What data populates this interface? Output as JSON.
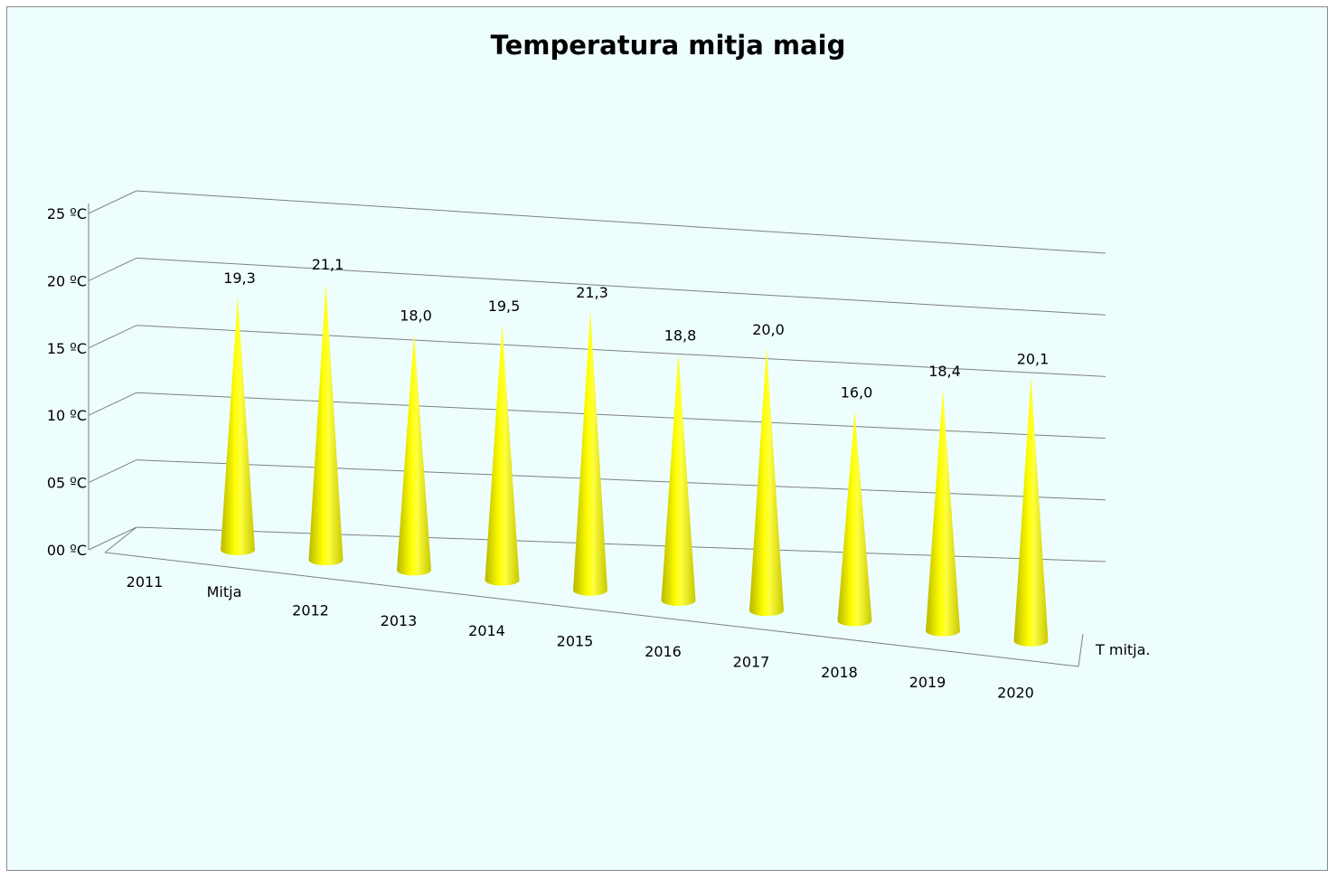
{
  "chart_data": {
    "type": "bar",
    "subtype": "3d-cone",
    "title": "Temperatura mitja maig",
    "xlabel": "",
    "ylabel": "",
    "ylim": [
      0,
      25
    ],
    "yticks": [
      "00 ºC",
      "05 ºC",
      "10 ºC",
      "15 ºC",
      "20 ºC",
      "25 ºC"
    ],
    "grid": true,
    "depth_labels": [
      "Mitja"
    ],
    "series_axis_label": "T mitja.",
    "categories": [
      "2011",
      "2012",
      "2013",
      "2014",
      "2015",
      "2016",
      "2017",
      "2018",
      "2019",
      "2020"
    ],
    "values": [
      19.3,
      21.1,
      18.0,
      19.5,
      21.3,
      18.8,
      20.0,
      16.0,
      18.4,
      20.1
    ],
    "data_labels": [
      "19,3",
      "21,1",
      "18,0",
      "19,5",
      "21,3",
      "18,8",
      "20,0",
      "16,0",
      "18,4",
      "20,1"
    ],
    "colors": {
      "cone": "#ffff00",
      "cone_shade": "#bdbd00",
      "background": "#eefefe",
      "grid": "#808080"
    }
  }
}
